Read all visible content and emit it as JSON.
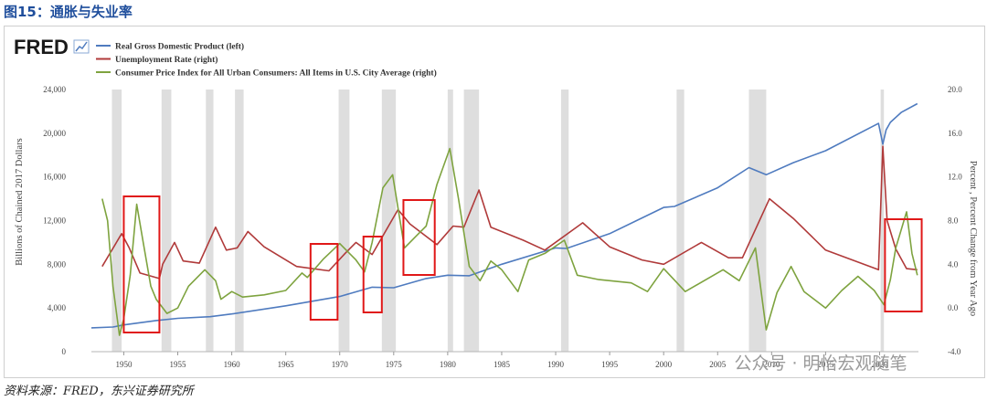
{
  "figure_title": "图15：通胀与失业率",
  "source_note": "资料来源：FRED，东兴证券研究所",
  "logo": "FRED",
  "watermark": "公众号 · 明怡宏观随笔",
  "chart_data": {
    "type": "line",
    "legend_position": "top-left",
    "ylabel_left": "Billions of Chained 2017 Dollars",
    "ylabel_right": "Percent , Percent Change from Year Ago",
    "y_left_range": [
      0,
      24000
    ],
    "y_left_ticks": [
      "0",
      "4,000",
      "8,000",
      "12,000",
      "16,000",
      "20,000",
      "24,000"
    ],
    "y_right_range": [
      -4,
      20
    ],
    "y_right_ticks": [
      "-4.0",
      "0.0",
      "4.0",
      "8.0",
      "12.0",
      "16.0",
      "20.0"
    ],
    "x_range": [
      1947,
      2023.6
    ],
    "x_ticks": [
      "1950",
      "1955",
      "1960",
      "1965",
      "1970",
      "1975",
      "1980",
      "1985",
      "1990",
      "1995",
      "2000",
      "2005",
      "2010",
      "2015",
      "2020"
    ],
    "recessions": [
      [
        1948.9,
        1949.8
      ],
      [
        1953.5,
        1954.4
      ],
      [
        1957.6,
        1958.3
      ],
      [
        1960.3,
        1961.1
      ],
      [
        1969.9,
        1970.9
      ],
      [
        1973.9,
        1975.2
      ],
      [
        1980.0,
        1980.5
      ],
      [
        1981.5,
        1982.9
      ],
      [
        1990.5,
        1991.2
      ],
      [
        2001.2,
        2001.9
      ],
      [
        2007.9,
        2009.5
      ],
      [
        2020.1,
        2020.4
      ]
    ],
    "highlights": [
      [
        1950.0,
        1953.3
      ],
      [
        1967.3,
        1969.8
      ],
      [
        1972.2,
        1973.9
      ],
      [
        1975.9,
        1978.8
      ],
      [
        2020.5,
        2023.9
      ]
    ],
    "series": [
      {
        "name": "Real Gross Domestic Product (left)",
        "axis": "left",
        "color": "#4f7bbf",
        "x": [
          1947,
          1949,
          1950,
          1953,
          1955,
          1958,
          1960,
          1965,
          1970,
          1973,
          1975,
          1978,
          1980,
          1982,
          1985,
          1990,
          1991,
          1995,
          2000,
          2001,
          2005,
          2007.9,
          2009.5,
          2012,
          2015,
          2019.9,
          2020.3,
          2020.6,
          2021,
          2022,
          2023.5
        ],
        "y": [
          2180,
          2260,
          2450,
          2850,
          3050,
          3200,
          3450,
          4200,
          5050,
          5900,
          5850,
          6700,
          7000,
          6950,
          8000,
          9500,
          9450,
          10800,
          13200,
          13300,
          15000,
          16850,
          16200,
          17300,
          18400,
          20900,
          19000,
          20300,
          21000,
          21900,
          22700
        ]
      },
      {
        "name": "Unemployment Rate (right)",
        "axis": "right",
        "color": "#b03a3a",
        "x": [
          1948,
          1949.8,
          1950.5,
          1951.5,
          1953.3,
          1953.6,
          1954.7,
          1955.5,
          1957,
          1958.5,
          1959.5,
          1960.5,
          1961.5,
          1963,
          1966,
          1969,
          1970.5,
          1971.5,
          1973,
          1975.4,
          1976.5,
          1979,
          1980.5,
          1981.5,
          1982.9,
          1984,
          1987,
          1989,
          1992.5,
          1995,
          1998,
          2000,
          2003.5,
          2006,
          2007.3,
          2009.8,
          2012,
          2015,
          2019.9,
          2020.3,
          2020.7,
          2021.5,
          2022.5,
          2023.5
        ],
        "y": [
          3.8,
          6.8,
          5.5,
          3.2,
          2.7,
          4.0,
          6.0,
          4.3,
          4.1,
          7.4,
          5.3,
          5.5,
          7.0,
          5.6,
          3.8,
          3.4,
          5.0,
          6.0,
          4.9,
          9.0,
          7.7,
          5.8,
          7.5,
          7.4,
          10.8,
          7.4,
          6.2,
          5.3,
          7.8,
          5.6,
          4.4,
          4.0,
          6.0,
          4.6,
          4.6,
          10.0,
          8.2,
          5.3,
          3.5,
          14.8,
          8.0,
          5.4,
          3.6,
          3.5
        ]
      },
      {
        "name": "Consumer Price Index for All Urban Consumers: All Items in U.S. City Average (right)",
        "axis": "right",
        "color": "#7ea33f",
        "x": [
          1948,
          1948.5,
          1949,
          1949.6,
          1950,
          1950.6,
          1951.2,
          1951.8,
          1952.5,
          1953,
          1954,
          1955,
          1956,
          1957.5,
          1958.5,
          1959,
          1960,
          1961,
          1963,
          1965,
          1966.5,
          1967,
          1968.5,
          1970,
          1971.5,
          1972.3,
          1973,
          1974,
          1974.9,
          1976,
          1977,
          1978,
          1979,
          1980.2,
          1981,
          1982,
          1983,
          1984,
          1985,
          1986.5,
          1987.5,
          1989,
          1990.8,
          1992,
          1994,
          1997,
          1998.5,
          2000,
          2002,
          2005.5,
          2007,
          2008.5,
          2009.5,
          2010.5,
          2011.8,
          2013,
          2015,
          2016.5,
          2018,
          2019.5,
          2020.4,
          2021,
          2021.5,
          2022.5,
          2023,
          2023.5
        ],
        "y": [
          10.0,
          8.0,
          2.0,
          -2.5,
          -1.0,
          3.0,
          9.5,
          6.0,
          2.0,
          0.8,
          -0.5,
          0.0,
          2.0,
          3.5,
          2.5,
          0.8,
          1.5,
          1.0,
          1.2,
          1.6,
          3.2,
          2.8,
          4.5,
          5.9,
          4.4,
          3.3,
          6.0,
          11.0,
          12.2,
          5.5,
          6.5,
          7.5,
          11.3,
          14.6,
          10.0,
          3.8,
          2.5,
          4.3,
          3.5,
          1.5,
          4.4,
          5.0,
          6.2,
          3.0,
          2.6,
          2.3,
          1.5,
          3.6,
          1.5,
          3.5,
          2.5,
          5.5,
          -2.0,
          1.4,
          3.8,
          1.5,
          0.0,
          1.6,
          2.9,
          1.6,
          0.3,
          2.6,
          5.5,
          8.8,
          5.0,
          3.0
        ]
      }
    ]
  }
}
